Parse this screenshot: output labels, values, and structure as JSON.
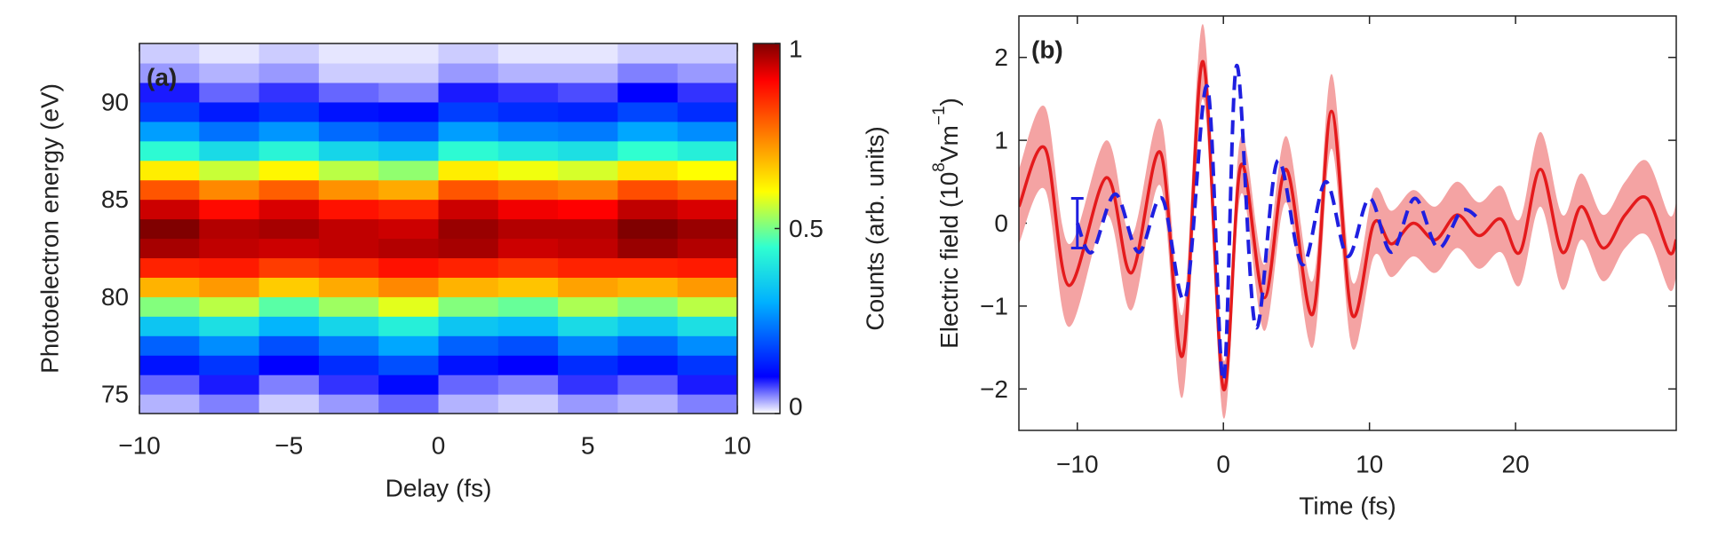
{
  "chart_data": [
    {
      "type": "heatmap",
      "annotation": "(a)",
      "xlabel": "Delay (fs)",
      "ylabel": "Photoelectron energy (eV)",
      "colorbar_label": "Counts (arb. units)",
      "x": [
        -9,
        -7,
        -5,
        -3,
        -1,
        1,
        3,
        5,
        7,
        9
      ],
      "y": [
        74.5,
        75.5,
        76.5,
        77.5,
        78.5,
        79.5,
        80.5,
        81.5,
        82.5,
        83.5,
        84.5,
        85.5,
        86.5,
        87.5,
        88.5,
        89.5,
        90.5,
        91.5,
        92.5
      ],
      "z": [
        [
          0.03,
          0.05,
          0.02,
          0.04,
          0.06,
          0.03,
          0.02,
          0.04,
          0.03,
          0.05
        ],
        [
          0.06,
          0.09,
          0.05,
          0.08,
          0.11,
          0.06,
          0.05,
          0.08,
          0.06,
          0.09
        ],
        [
          0.12,
          0.16,
          0.1,
          0.15,
          0.19,
          0.12,
          0.1,
          0.15,
          0.12,
          0.16
        ],
        [
          0.21,
          0.26,
          0.19,
          0.24,
          0.29,
          0.21,
          0.19,
          0.25,
          0.21,
          0.26
        ],
        [
          0.34,
          0.39,
          0.31,
          0.37,
          0.42,
          0.34,
          0.32,
          0.38,
          0.34,
          0.39
        ],
        [
          0.51,
          0.55,
          0.48,
          0.53,
          0.58,
          0.51,
          0.49,
          0.54,
          0.51,
          0.55
        ],
        [
          0.69,
          0.72,
          0.66,
          0.7,
          0.74,
          0.69,
          0.67,
          0.71,
          0.69,
          0.72
        ],
        [
          0.86,
          0.87,
          0.83,
          0.85,
          0.88,
          0.86,
          0.84,
          0.86,
          0.86,
          0.87
        ],
        [
          0.97,
          0.95,
          0.94,
          0.95,
          0.96,
          0.97,
          0.94,
          0.95,
          0.98,
          0.96
        ],
        [
          1.0,
          0.96,
          0.97,
          0.95,
          0.94,
          0.98,
          0.96,
          0.96,
          1.0,
          0.98
        ],
        [
          0.94,
          0.89,
          0.93,
          0.88,
          0.86,
          0.94,
          0.91,
          0.9,
          0.95,
          0.93
        ],
        [
          0.8,
          0.74,
          0.79,
          0.73,
          0.7,
          0.8,
          0.77,
          0.75,
          0.81,
          0.78
        ],
        [
          0.62,
          0.56,
          0.61,
          0.55,
          0.52,
          0.62,
          0.59,
          0.57,
          0.63,
          0.6
        ],
        [
          0.44,
          0.38,
          0.43,
          0.37,
          0.34,
          0.44,
          0.41,
          0.39,
          0.45,
          0.42
        ],
        [
          0.28,
          0.23,
          0.27,
          0.22,
          0.2,
          0.28,
          0.25,
          0.24,
          0.29,
          0.26
        ],
        [
          0.17,
          0.13,
          0.16,
          0.12,
          0.11,
          0.17,
          0.15,
          0.14,
          0.18,
          0.15
        ],
        [
          0.09,
          0.06,
          0.08,
          0.06,
          0.05,
          0.09,
          0.08,
          0.07,
          0.1,
          0.08
        ],
        [
          0.04,
          0.03,
          0.04,
          0.02,
          0.02,
          0.04,
          0.03,
          0.03,
          0.05,
          0.04
        ],
        [
          0.02,
          0.01,
          0.02,
          0.01,
          0.01,
          0.02,
          0.01,
          0.01,
          0.02,
          0.02
        ]
      ],
      "xlim": [
        -10,
        10
      ],
      "xticks": [
        {
          "value": -10,
          "label": "−10"
        },
        {
          "value": -5,
          "label": "−5"
        },
        0,
        5,
        10
      ],
      "ylim": [
        74,
        93
      ],
      "yticks": [
        75,
        80,
        85,
        90
      ],
      "zlim": [
        0,
        1
      ],
      "zticks": [
        0,
        0.5,
        1
      ],
      "colorscale": [
        [
          0,
          "#ffffff"
        ],
        [
          0.1,
          "#0000ff"
        ],
        [
          0.3,
          "#00b0ff"
        ],
        [
          0.45,
          "#30ffd0"
        ],
        [
          0.6,
          "#ffff00"
        ],
        [
          0.75,
          "#ff8000"
        ],
        [
          0.9,
          "#ff0000"
        ],
        [
          1,
          "#800000"
        ]
      ]
    },
    {
      "type": "line",
      "annotation": "(b)",
      "xlabel": "Time (fs)",
      "ylabel_parts": [
        "Electric field (10",
        "8",
        "Vm",
        "−1",
        ")"
      ],
      "xlim": [
        -14,
        31
      ],
      "xticks": [
        {
          "value": -10,
          "label": "−10"
        },
        0,
        10,
        20
      ],
      "ylim": [
        -2.5,
        2.5
      ],
      "yticks": [
        {
          "value": -2,
          "label": "−2"
        },
        {
          "value": -1,
          "label": "−1"
        },
        0,
        1,
        2
      ],
      "series": [
        {
          "color": "#e41a1c",
          "band_color": "#f4a3a3",
          "dashed": false,
          "x": [
            -14,
            -12.2,
            -10.6,
            -8,
            -6.3,
            -4.3,
            -2.8,
            -1.4,
            0,
            1.2,
            2.8,
            4.3,
            6.1,
            7.4,
            8.8,
            10.3,
            11.5,
            13,
            14.5,
            16,
            17.5,
            19,
            20.3,
            21.7,
            23.2,
            24.5,
            26,
            27.5,
            29,
            30.5,
            31
          ],
          "values": [
            0.2,
            0.9,
            -0.75,
            0.55,
            -0.6,
            0.85,
            -1.6,
            1.95,
            -2.0,
            0.7,
            -0.9,
            0.65,
            -1.1,
            1.35,
            -1.1,
            0.0,
            -0.25,
            0.0,
            -0.2,
            0.1,
            -0.15,
            0.05,
            -0.35,
            0.65,
            -0.35,
            0.2,
            -0.3,
            0.1,
            0.3,
            -0.35,
            -0.2
          ],
          "error": [
            0.45,
            0.5,
            0.5,
            0.45,
            0.45,
            0.4,
            0.5,
            0.45,
            0.35,
            0.35,
            0.4,
            0.4,
            0.4,
            0.45,
            0.4,
            0.4,
            0.4,
            0.4,
            0.4,
            0.4,
            0.4,
            0.4,
            0.4,
            0.45,
            0.45,
            0.4,
            0.4,
            0.4,
            0.45,
            0.45,
            0.45
          ]
        },
        {
          "color": "#1f1fe0",
          "dashed": true,
          "x": [
            -10,
            -9,
            -7.4,
            -5.8,
            -4.2,
            -2.6,
            -1.1,
            0,
            0.9,
            2.2,
            3.7,
            5.4,
            7,
            8.5,
            10,
            11.5,
            13.1,
            14.7,
            16.3,
            17.5
          ],
          "values": [
            0,
            -0.35,
            0.35,
            -0.35,
            0.3,
            -0.9,
            1.65,
            -1.9,
            1.9,
            -1.25,
            0.75,
            -0.5,
            0.5,
            -0.4,
            0.3,
            -0.35,
            0.3,
            -0.3,
            0.15,
            0.05
          ]
        }
      ],
      "error_bars": [
        {
          "x": -10,
          "y": 0,
          "error": 0.3,
          "color": "#1f1fe0"
        }
      ]
    }
  ]
}
